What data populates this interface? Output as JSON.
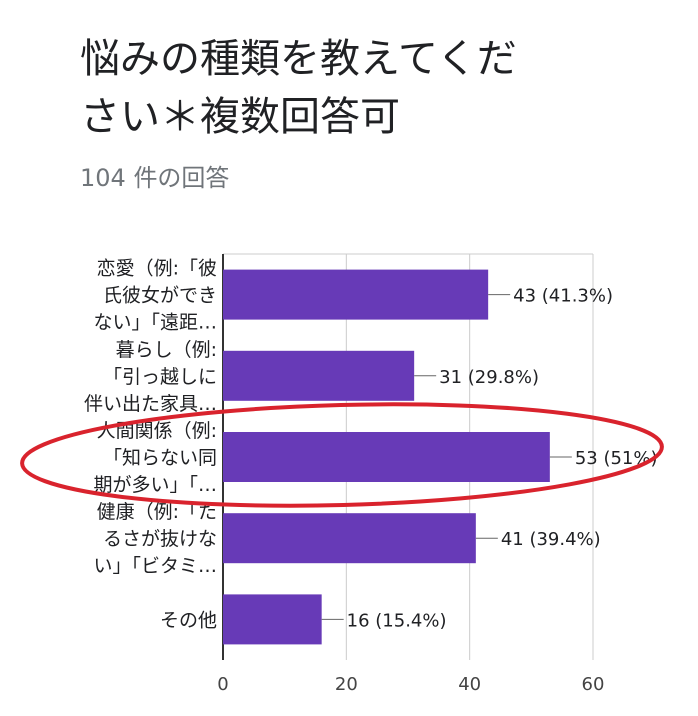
{
  "page": {
    "title_line1": "悩みの種類を教えてくだ",
    "title_line2": "さい＊複数回答可",
    "response_count": "104 件の回答"
  },
  "colors": {
    "bar": "#673ab7",
    "axis": "#333333",
    "grid": "#cccccc",
    "text": "#202124",
    "highlight_ellipse": "#d9232d"
  },
  "chart_data": {
    "type": "bar",
    "orientation": "horizontal",
    "categories": [
      [
        "恋愛（例:「彼",
        "氏彼女ができ",
        "ない」「遠距…"
      ],
      [
        "暮らし（例:",
        "「引っ越しに",
        "伴い出た家具…"
      ],
      [
        "人間関係（例:",
        "「知らない同",
        "期が多い」「…"
      ],
      [
        "健康（例:「た",
        "るさが抜けな",
        "い」「ビタミ…"
      ],
      [
        "その他"
      ]
    ],
    "values": [
      43,
      31,
      53,
      41,
      16
    ],
    "data_labels": [
      "43 (41.3%)",
      "31 (29.8%)",
      "53 (51%)",
      "41 (39.4%)",
      "16 (15.4%)"
    ],
    "xlim": [
      0,
      60
    ],
    "xticks": [
      0,
      20,
      40,
      60
    ],
    "grid": true,
    "highlighted_category_index": 2
  }
}
